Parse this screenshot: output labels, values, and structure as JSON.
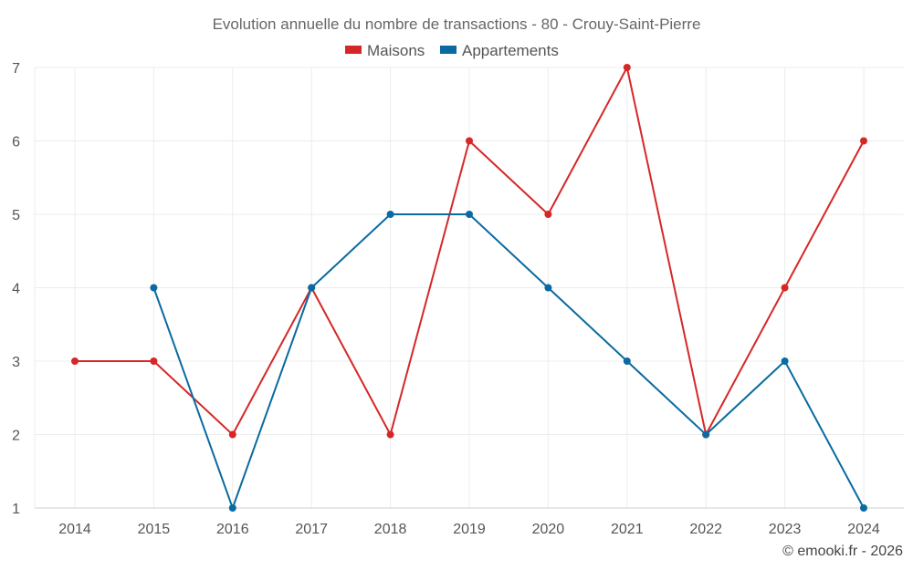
{
  "chart_data": {
    "type": "line",
    "title": "Evolution annuelle du nombre de transactions - 80 - Crouy-Saint-Pierre",
    "xlabel": "",
    "ylabel": "",
    "categories": [
      "2014",
      "2015",
      "2016",
      "2017",
      "2018",
      "2019",
      "2020",
      "2021",
      "2022",
      "2023",
      "2024"
    ],
    "ylim": [
      1,
      7
    ],
    "yticks": [
      "1",
      "2",
      "3",
      "4",
      "5",
      "6",
      "7"
    ],
    "grid": true,
    "legend_position": "top-center",
    "series": [
      {
        "name": "Maisons",
        "color": "#d62728",
        "values": [
          3,
          3,
          2,
          4,
          2,
          6,
          5,
          7,
          2,
          4,
          6
        ]
      },
      {
        "name": "Appartements",
        "color": "#0a6aa1",
        "values": [
          null,
          4,
          1,
          4,
          5,
          5,
          4,
          3,
          2,
          3,
          1
        ]
      }
    ]
  },
  "footer": {
    "credit": "© emooki.fr - 2026"
  }
}
